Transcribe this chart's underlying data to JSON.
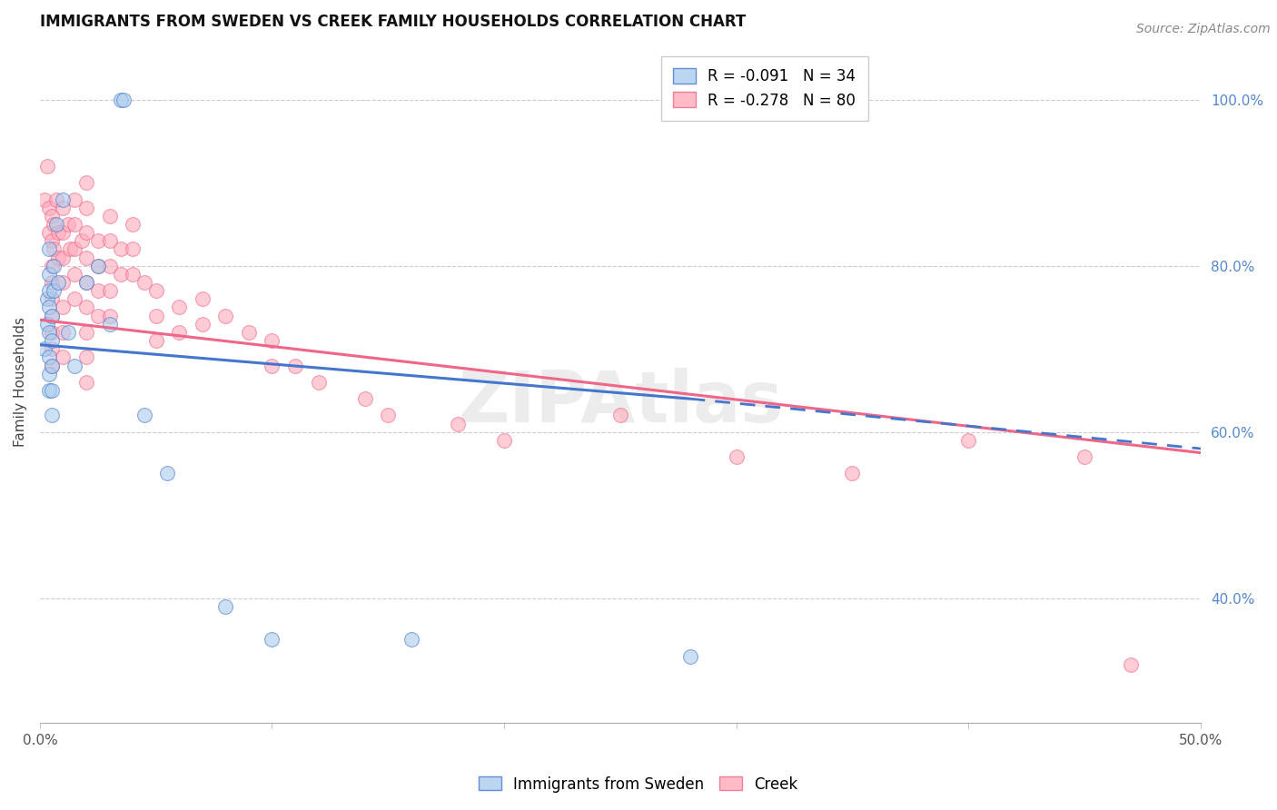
{
  "title": "IMMIGRANTS FROM SWEDEN VS CREEK FAMILY HOUSEHOLDS CORRELATION CHART",
  "source": "Source: ZipAtlas.com",
  "ylabel": "Family Households",
  "legend_blue_r": "R = -0.091",
  "legend_blue_n": "N = 34",
  "legend_pink_r": "R = -0.278",
  "legend_pink_n": "N = 80",
  "legend_label_blue": "Immigrants from Sweden",
  "legend_label_pink": "Creek",
  "blue_color": "#AACCEE",
  "pink_color": "#FFAABB",
  "blue_line_color": "#4477CC",
  "pink_line_color": "#EE6688",
  "blue_scatter": [
    [
      0.2,
      70
    ],
    [
      0.3,
      76
    ],
    [
      0.3,
      73
    ],
    [
      0.4,
      82
    ],
    [
      0.4,
      79
    ],
    [
      0.4,
      77
    ],
    [
      0.4,
      75
    ],
    [
      0.4,
      72
    ],
    [
      0.4,
      69
    ],
    [
      0.4,
      67
    ],
    [
      0.4,
      65
    ],
    [
      0.5,
      74
    ],
    [
      0.5,
      71
    ],
    [
      0.5,
      68
    ],
    [
      0.5,
      65
    ],
    [
      0.5,
      62
    ],
    [
      0.6,
      80
    ],
    [
      0.6,
      77
    ],
    [
      0.7,
      85
    ],
    [
      0.8,
      78
    ],
    [
      1.0,
      88
    ],
    [
      1.2,
      72
    ],
    [
      1.5,
      68
    ],
    [
      2.0,
      78
    ],
    [
      2.5,
      80
    ],
    [
      3.0,
      73
    ],
    [
      3.5,
      100
    ],
    [
      3.6,
      100
    ],
    [
      4.5,
      62
    ],
    [
      5.5,
      55
    ],
    [
      8.0,
      39
    ],
    [
      10.0,
      35
    ],
    [
      16.0,
      35
    ],
    [
      28.0,
      33
    ]
  ],
  "pink_scatter": [
    [
      0.2,
      88
    ],
    [
      0.3,
      92
    ],
    [
      0.4,
      87
    ],
    [
      0.4,
      84
    ],
    [
      0.5,
      86
    ],
    [
      0.5,
      83
    ],
    [
      0.5,
      80
    ],
    [
      0.5,
      78
    ],
    [
      0.5,
      76
    ],
    [
      0.5,
      74
    ],
    [
      0.5,
      72
    ],
    [
      0.5,
      70
    ],
    [
      0.5,
      68
    ],
    [
      0.6,
      85
    ],
    [
      0.6,
      82
    ],
    [
      0.7,
      88
    ],
    [
      0.8,
      84
    ],
    [
      0.8,
      81
    ],
    [
      1.0,
      87
    ],
    [
      1.0,
      84
    ],
    [
      1.0,
      81
    ],
    [
      1.0,
      78
    ],
    [
      1.0,
      75
    ],
    [
      1.0,
      72
    ],
    [
      1.0,
      69
    ],
    [
      1.2,
      85
    ],
    [
      1.3,
      82
    ],
    [
      1.5,
      88
    ],
    [
      1.5,
      85
    ],
    [
      1.5,
      82
    ],
    [
      1.5,
      79
    ],
    [
      1.5,
      76
    ],
    [
      1.8,
      83
    ],
    [
      2.0,
      90
    ],
    [
      2.0,
      87
    ],
    [
      2.0,
      84
    ],
    [
      2.0,
      81
    ],
    [
      2.0,
      78
    ],
    [
      2.0,
      75
    ],
    [
      2.0,
      72
    ],
    [
      2.0,
      69
    ],
    [
      2.0,
      66
    ],
    [
      2.5,
      83
    ],
    [
      2.5,
      80
    ],
    [
      2.5,
      77
    ],
    [
      2.5,
      74
    ],
    [
      3.0,
      86
    ],
    [
      3.0,
      83
    ],
    [
      3.0,
      80
    ],
    [
      3.0,
      77
    ],
    [
      3.0,
      74
    ],
    [
      3.5,
      82
    ],
    [
      3.5,
      79
    ],
    [
      4.0,
      85
    ],
    [
      4.0,
      82
    ],
    [
      4.0,
      79
    ],
    [
      4.5,
      78
    ],
    [
      5.0,
      77
    ],
    [
      5.0,
      74
    ],
    [
      5.0,
      71
    ],
    [
      6.0,
      75
    ],
    [
      6.0,
      72
    ],
    [
      7.0,
      76
    ],
    [
      7.0,
      73
    ],
    [
      8.0,
      74
    ],
    [
      9.0,
      72
    ],
    [
      10.0,
      71
    ],
    [
      10.0,
      68
    ],
    [
      11.0,
      68
    ],
    [
      12.0,
      66
    ],
    [
      14.0,
      64
    ],
    [
      15.0,
      62
    ],
    [
      18.0,
      61
    ],
    [
      20.0,
      59
    ],
    [
      25.0,
      62
    ],
    [
      30.0,
      57
    ],
    [
      35.0,
      55
    ],
    [
      40.0,
      59
    ],
    [
      45.0,
      57
    ],
    [
      47.0,
      32
    ]
  ],
  "blue_trendline_solid": [
    [
      0.0,
      70.5
    ],
    [
      28.0,
      64.0
    ]
  ],
  "blue_trendline_dashed": [
    [
      28.0,
      64.0
    ],
    [
      50.0,
      58.0
    ]
  ],
  "pink_trendline": [
    [
      0.0,
      73.5
    ],
    [
      50.0,
      57.5
    ]
  ],
  "xlim": [
    0.0,
    50.0
  ],
  "ylim": [
    25.0,
    107.0
  ],
  "ytick_pct": [
    40,
    60,
    80,
    100
  ],
  "xtick_vals": [
    0,
    10,
    20,
    30,
    40,
    50
  ]
}
